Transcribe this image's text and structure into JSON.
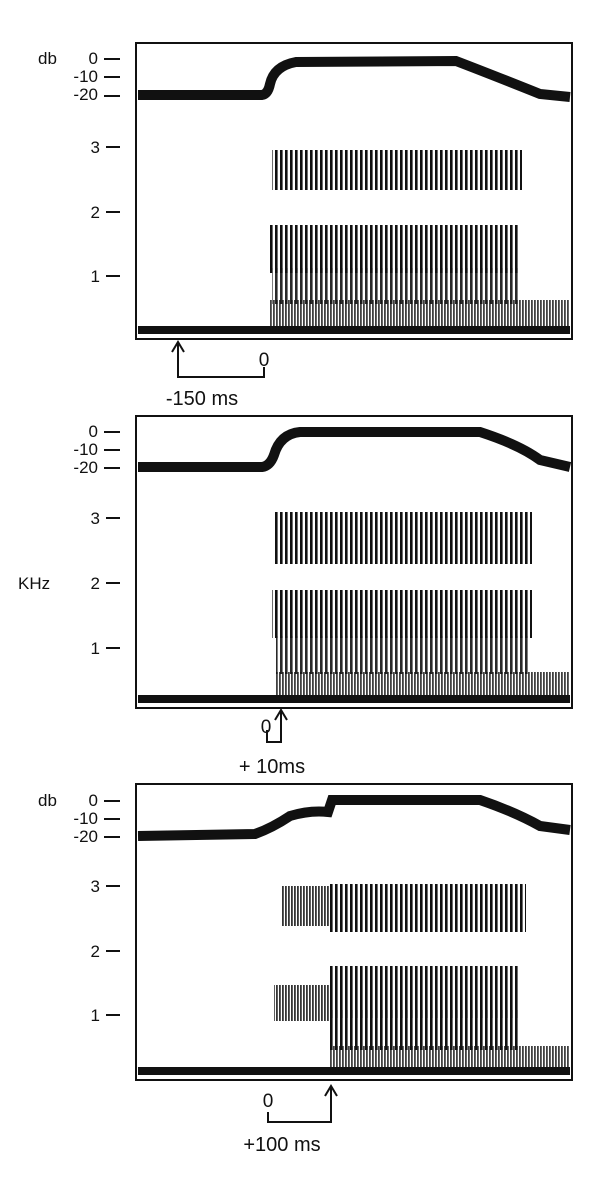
{
  "figure": {
    "panels": [
      {
        "db_unit": "db",
        "db_ticks": [
          "0",
          "-10",
          "-20"
        ],
        "khz_ticks": [
          "3",
          "2",
          "1"
        ],
        "zero_label": "0",
        "offset_label": "-150 ms"
      },
      {
        "db_unit": "",
        "db_ticks": [
          "0",
          "-10",
          "-20"
        ],
        "khz_ticks": [
          "3",
          "2",
          "1"
        ],
        "khz_unit": "KHz",
        "zero_label": "0",
        "offset_label": "+ 10ms"
      },
      {
        "db_unit": "db",
        "db_ticks": [
          "0",
          "-10",
          "-20"
        ],
        "khz_ticks": [
          "3",
          "2",
          "1"
        ],
        "zero_label": "0",
        "offset_label": "+100 ms"
      }
    ]
  }
}
